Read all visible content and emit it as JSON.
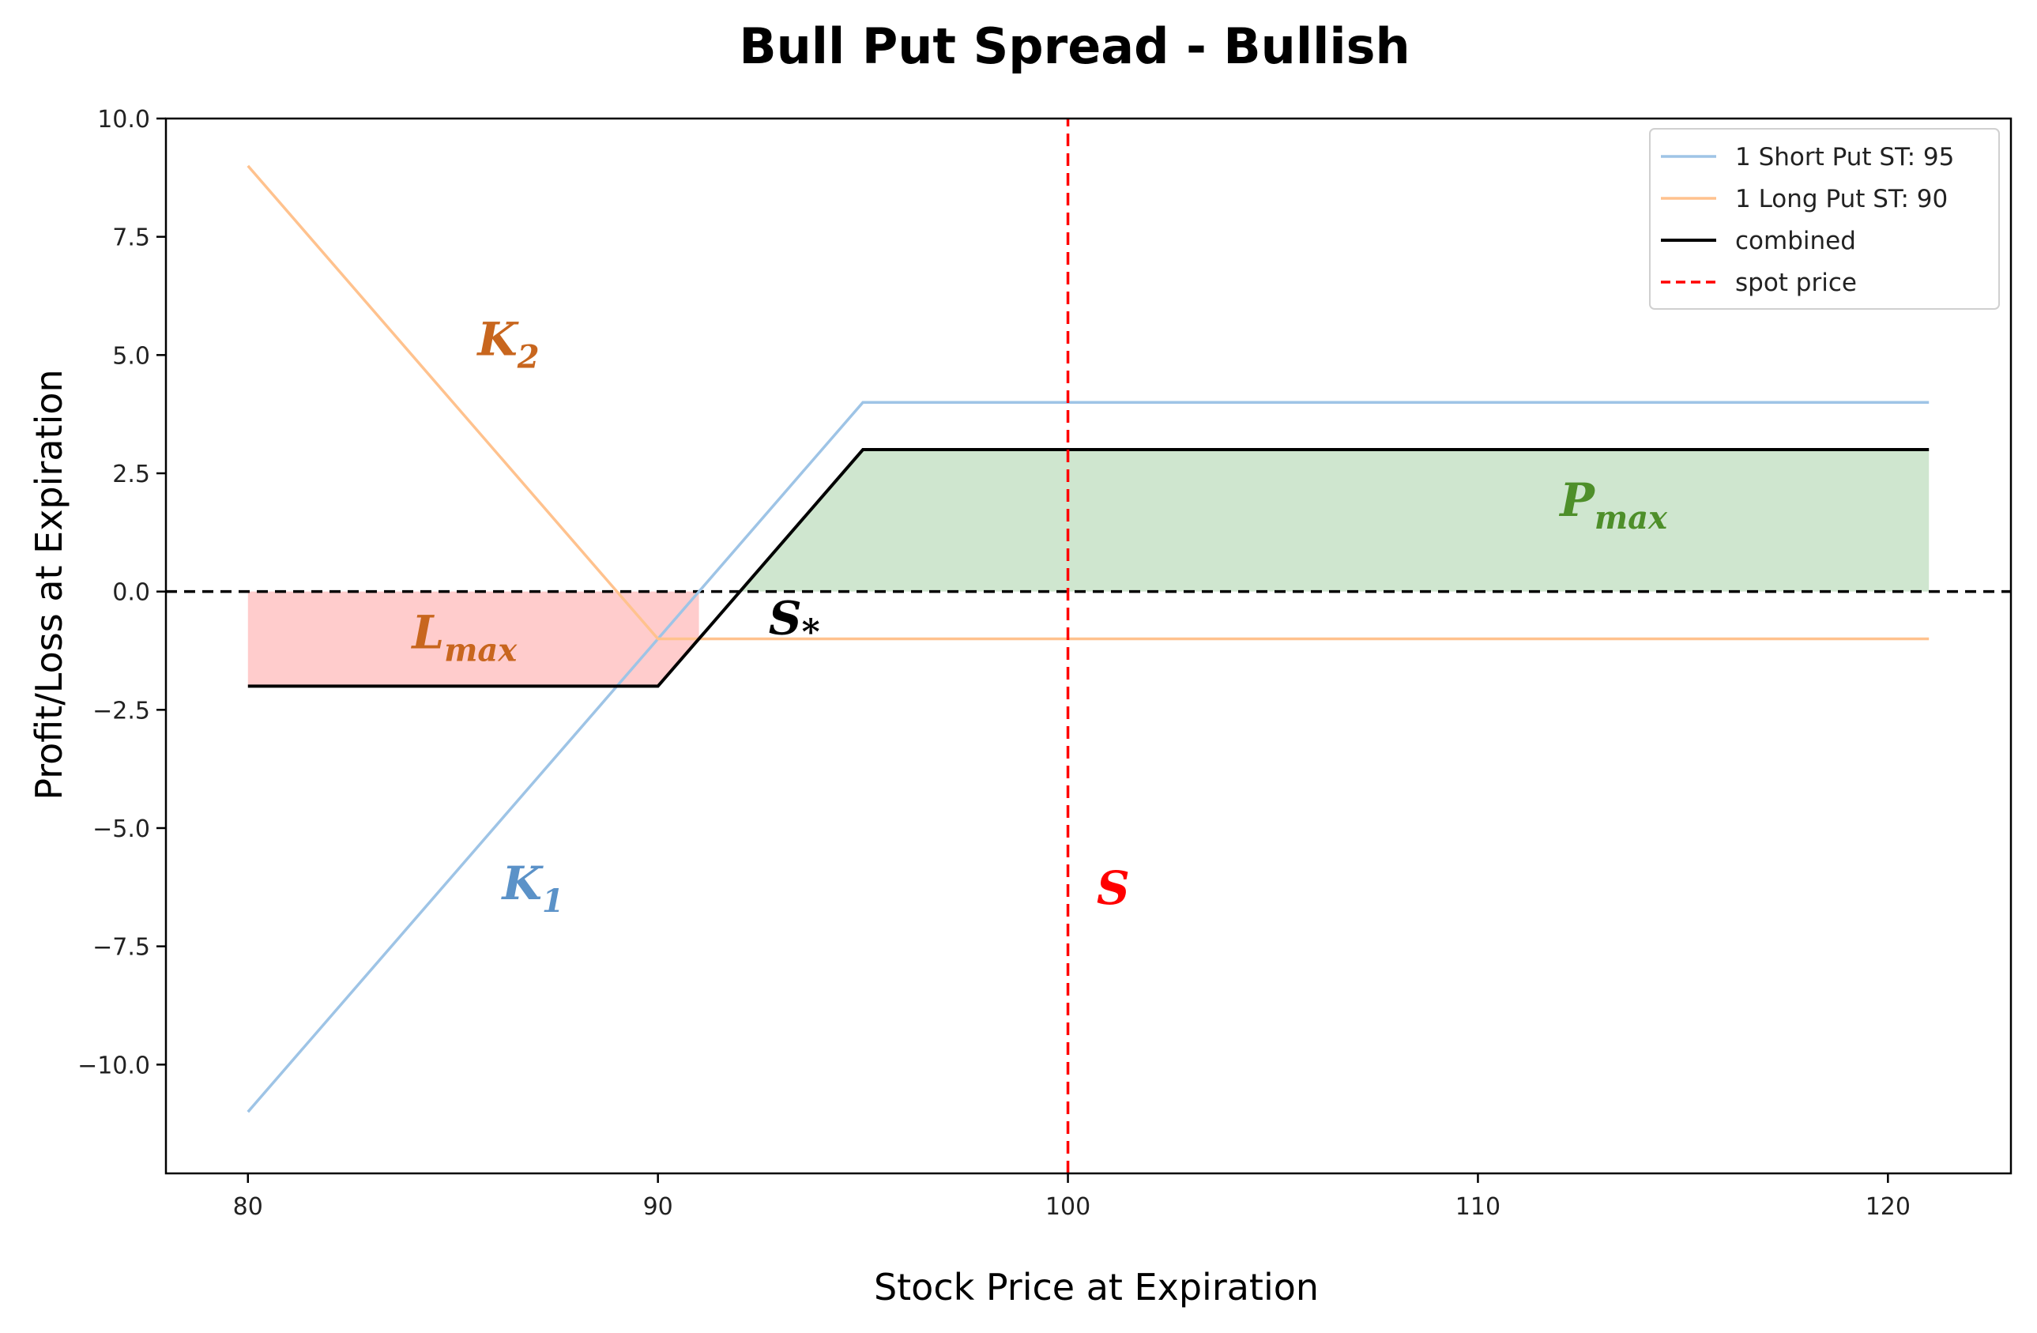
{
  "chart_data": {
    "type": "line",
    "title": "Bull Put Spread - Bullish",
    "xlabel": "Stock Price at Expiration",
    "ylabel": "Profit/Loss at Expiration",
    "xlim": [
      78,
      123
    ],
    "ylim": [
      -12.3,
      10
    ],
    "xticks": [
      80,
      90,
      100,
      110,
      120
    ],
    "yticks": [
      10.0,
      7.5,
      5.0,
      2.5,
      0.0,
      -2.5,
      -5.0,
      -7.5,
      -10.0
    ],
    "ytick_labels": [
      "10.0",
      "7.5",
      "5.0",
      "2.5",
      "0.0",
      "−2.5",
      "−5.0",
      "−7.5",
      "−10.0"
    ],
    "grid": false,
    "legend_position": "top-right",
    "series": [
      {
        "name": "1 Short Put ST: 95",
        "color": "#9ec4e6",
        "style": "solid",
        "x": [
          80,
          95,
          121
        ],
        "y": [
          -11,
          4,
          4
        ]
      },
      {
        "name": "1 Long Put ST: 90",
        "color": "#ffc28e",
        "style": "solid",
        "x": [
          80,
          90,
          121
        ],
        "y": [
          9,
          -1,
          -1
        ]
      },
      {
        "name": "combined",
        "color": "#000000",
        "style": "solid",
        "x": [
          80,
          90,
          95,
          121
        ],
        "y": [
          -2,
          -2,
          3,
          3
        ]
      },
      {
        "name": "spot price",
        "color": "#ff0000",
        "style": "dashed",
        "x": [
          100,
          100
        ],
        "y": [
          -12.3,
          10
        ]
      }
    ],
    "zero_line": {
      "y": 0,
      "color": "#000000",
      "style": "dashed"
    },
    "fills": [
      {
        "label": "L_max",
        "color": "#ffcccc",
        "x": [
          80,
          90,
          91
        ],
        "y_top": [
          0,
          0,
          0
        ],
        "y_bottom": [
          -2,
          -2,
          -1
        ]
      },
      {
        "label": "P_max",
        "color": "#cfe6cf",
        "x": [
          92,
          95,
          121
        ],
        "y_top": [
          0,
          3,
          3
        ],
        "y_bottom": [
          0,
          0,
          0
        ]
      }
    ],
    "annotations": [
      {
        "text": "K",
        "sub": "2",
        "x": 85.6,
        "y": 5.0,
        "color": "#c8661e"
      },
      {
        "text": "K",
        "sub": "1",
        "x": 86.2,
        "y": -6.5,
        "color": "#5b92c8"
      },
      {
        "text": "L",
        "sub": "max",
        "x": 84.0,
        "y": -1.2,
        "color": "#c8661e"
      },
      {
        "text": "P",
        "sub": "max",
        "x": 112.0,
        "y": 1.6,
        "color": "#4e8f2a"
      },
      {
        "text": "S",
        "sub": "*",
        "x": 92.7,
        "y": -0.9,
        "color": "#000000"
      },
      {
        "text": "S",
        "sub": "",
        "x": 100.7,
        "y": -6.6,
        "color": "#ff0000"
      }
    ]
  }
}
